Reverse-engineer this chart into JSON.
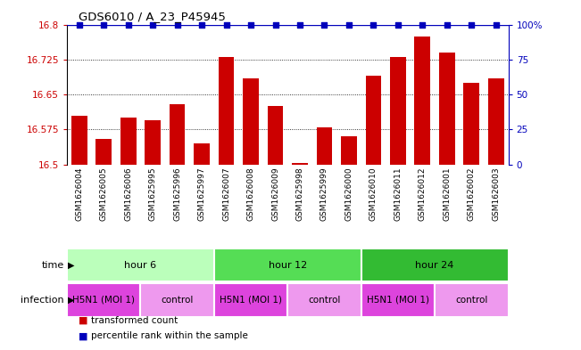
{
  "title": "GDS6010 / A_23_P45945",
  "samples": [
    "GSM1626004",
    "GSM1626005",
    "GSM1626006",
    "GSM1625995",
    "GSM1625996",
    "GSM1625997",
    "GSM1626007",
    "GSM1626008",
    "GSM1626009",
    "GSM1625998",
    "GSM1625999",
    "GSM1626000",
    "GSM1626010",
    "GSM1626011",
    "GSM1626012",
    "GSM1626001",
    "GSM1626002",
    "GSM1626003"
  ],
  "bar_values": [
    16.605,
    16.555,
    16.6,
    16.595,
    16.63,
    16.545,
    16.73,
    16.685,
    16.625,
    16.503,
    16.58,
    16.56,
    16.69,
    16.73,
    16.775,
    16.74,
    16.675,
    16.685
  ],
  "percentile_values": [
    100,
    100,
    100,
    100,
    100,
    100,
    100,
    100,
    100,
    100,
    100,
    100,
    100,
    100,
    100,
    100,
    100,
    100
  ],
  "bar_color": "#cc0000",
  "percentile_color": "#0000bb",
  "ylim_left": [
    16.5,
    16.8
  ],
  "ylim_right": [
    0,
    100
  ],
  "yticks_left": [
    16.5,
    16.575,
    16.65,
    16.725,
    16.8
  ],
  "yticks_right": [
    0,
    25,
    50,
    75,
    100
  ],
  "ytick_labels_right": [
    "0",
    "25",
    "50",
    "75",
    "100%"
  ],
  "groups": [
    {
      "label": "hour 6",
      "start": 0,
      "end": 6,
      "color": "#bbffbb"
    },
    {
      "label": "hour 12",
      "start": 6,
      "end": 12,
      "color": "#55dd55"
    },
    {
      "label": "hour 24",
      "start": 12,
      "end": 18,
      "color": "#33bb33"
    }
  ],
  "infections": [
    {
      "label": "H5N1 (MOI 1)",
      "start": 0,
      "end": 3,
      "color": "#dd44dd"
    },
    {
      "label": "control",
      "start": 3,
      "end": 6,
      "color": "#ee99ee"
    },
    {
      "label": "H5N1 (MOI 1)",
      "start": 6,
      "end": 9,
      "color": "#dd44dd"
    },
    {
      "label": "control",
      "start": 9,
      "end": 12,
      "color": "#ee99ee"
    },
    {
      "label": "H5N1 (MOI 1)",
      "start": 12,
      "end": 15,
      "color": "#dd44dd"
    },
    {
      "label": "control",
      "start": 15,
      "end": 18,
      "color": "#ee99ee"
    }
  ],
  "time_label": "time",
  "infection_label": "infection",
  "legend_items": [
    {
      "label": "transformed count",
      "color": "#cc0000"
    },
    {
      "label": "percentile rank within the sample",
      "color": "#0000bb"
    }
  ],
  "bar_width": 0.65,
  "sample_bg_color": "#cccccc"
}
